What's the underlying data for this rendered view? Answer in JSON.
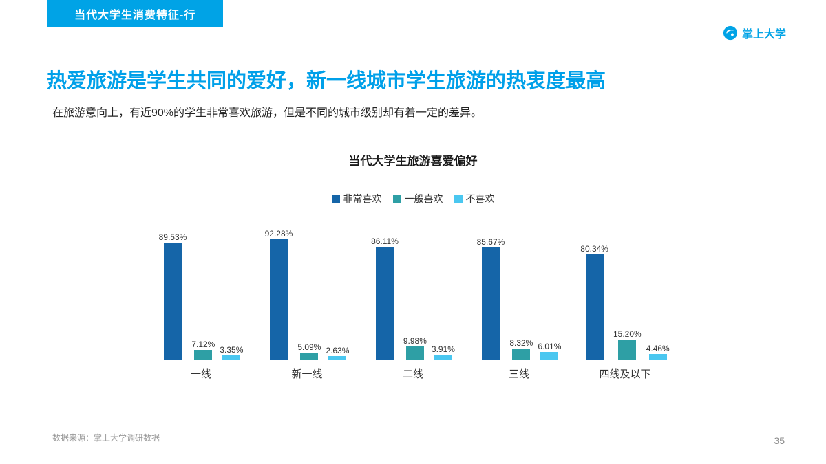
{
  "header": {
    "badge": "当代大学生消费特征-行",
    "brand": "掌上大学"
  },
  "title": "热爱旅游是学生共同的爱好，新一线城市学生旅游的热衷度最高",
  "subtitle": "在旅游意向上，有近90%的学生非常喜欢旅游，但是不同的城市级别却有着一定的差异。",
  "chart_data": {
    "type": "bar",
    "title": "当代大学生旅游喜爱偏好",
    "categories": [
      "一线",
      "新一线",
      "二线",
      "三线",
      "四线及以下"
    ],
    "series": [
      {
        "name": "非常喜欢",
        "color": "#1565A8",
        "values": [
          89.53,
          92.28,
          86.11,
          85.67,
          80.34
        ]
      },
      {
        "name": "一般喜欢",
        "color": "#2E9FA5",
        "values": [
          7.12,
          5.09,
          9.98,
          8.32,
          15.2
        ]
      },
      {
        "name": "不喜欢",
        "color": "#4AC7F0",
        "values": [
          3.35,
          2.63,
          3.91,
          6.01,
          4.46
        ]
      }
    ],
    "value_suffix": "%",
    "ylim": [
      0,
      100
    ],
    "grid": false,
    "legend_position": "top"
  },
  "footer": {
    "source": "数据来源：掌上大学调研数据",
    "page_number": "35"
  },
  "colors": {
    "accent": "#00A0E9"
  }
}
